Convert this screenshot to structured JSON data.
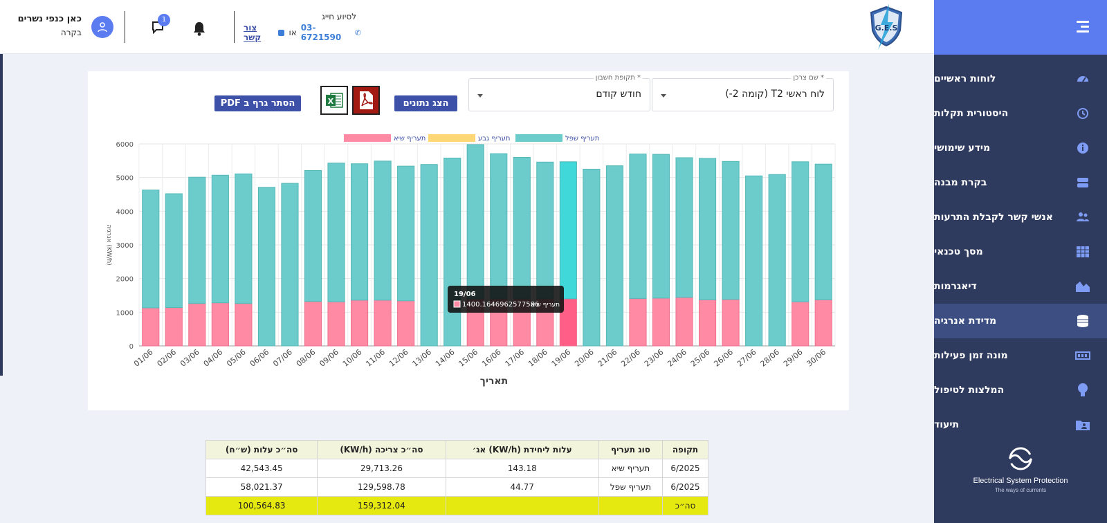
{
  "sidebar": {
    "items": [
      {
        "label": "לוחות ראשיים",
        "icon": "dashboard-icon"
      },
      {
        "label": "היסטורית תקלות",
        "icon": "history-icon"
      },
      {
        "label": "מידע שימושי",
        "icon": "info-icon"
      },
      {
        "label": "בקרת מבנה",
        "icon": "server-icon"
      },
      {
        "label": "אנשי קשר לקבלת התרעות",
        "icon": "users-icon"
      },
      {
        "label": "מסך טכנאי",
        "icon": "grid-icon"
      },
      {
        "label": "דיאגרמות",
        "icon": "area-chart-icon"
      },
      {
        "label": "מדידת אנרגיה",
        "icon": "coins-icon",
        "active": true
      },
      {
        "label": "מונה זמן פעילות",
        "icon": "counter-icon"
      },
      {
        "label": "המלצות לטיפול",
        "icon": "lightbulb-icon"
      },
      {
        "label": "תיעוד",
        "icon": "folder-user-icon"
      }
    ],
    "esp_title": "Electrical System Protection",
    "esp_subtitle": "The ways of currents"
  },
  "header": {
    "logo_text": "G.E.S",
    "support_title": "לסיוע חייג",
    "phone": "03-6721590",
    "or_text": "או",
    "contact_link": "צור קשר",
    "notifications_count": "1",
    "user_name": "כאן כנפי נשרים",
    "user_role": "בקרה"
  },
  "filters": {
    "consumer_label": "שם צרכן *",
    "consumer_value": "לוח ראשי T2 (קומה 2-)",
    "period_label": "תקופת חשבון *",
    "period_value": "חודש קודם"
  },
  "buttons": {
    "show_data": "הצג נתונים",
    "hide_pdf": "הסתר גרף ב PDF"
  },
  "colors": {
    "low": "#6ccbcb",
    "low_highlight": "#40d8d8",
    "peak": "#ff8aa3",
    "peak_highlight": "#ff5e86",
    "mid": "#ffd776"
  },
  "chart_data": {
    "type": "bar",
    "stacked": true,
    "xlabel": "תאריך",
    "ylabel": "אנרגיה (KW/h)",
    "ylim": [
      0,
      6000
    ],
    "yticks": [
      0,
      1000,
      2000,
      3000,
      4000,
      5000,
      6000
    ],
    "legend": [
      "תעריף שפל",
      "תעריף גבע",
      "תעריף שיא"
    ],
    "legend_position": "top",
    "grid": true,
    "categories": [
      "01/06",
      "02/06",
      "03/06",
      "04/06",
      "05/06",
      "06/06",
      "07/06",
      "08/06",
      "09/06",
      "10/06",
      "11/06",
      "12/06",
      "13/06",
      "14/06",
      "15/06",
      "16/06",
      "17/06",
      "18/06",
      "19/06",
      "20/06",
      "21/06",
      "22/06",
      "23/06",
      "24/06",
      "25/06",
      "26/06",
      "27/06",
      "28/06",
      "29/06",
      "30/06"
    ],
    "series": [
      {
        "name": "תעריף שיא",
        "values": [
          1130,
          1140,
          1260,
          1280,
          1260,
          0,
          0,
          1320,
          1310,
          1360,
          1360,
          1340,
          0,
          0,
          1400,
          1400,
          1400,
          1400,
          1400,
          0,
          0,
          1410,
          1420,
          1440,
          1370,
          1380,
          0,
          0,
          1310,
          1370
        ]
      },
      {
        "name": "תעריף גבע",
        "values": [
          0,
          0,
          0,
          0,
          0,
          0,
          0,
          0,
          0,
          0,
          0,
          0,
          0,
          0,
          0,
          0,
          0,
          0,
          0,
          0,
          0,
          0,
          0,
          0,
          0,
          0,
          0,
          0,
          0,
          0
        ]
      },
      {
        "name": "תעריף שפל",
        "values": [
          3500,
          3380,
          3750,
          3790,
          3850,
          4710,
          4830,
          3890,
          4120,
          4050,
          4130,
          4000,
          5390,
          5580,
          4580,
          4310,
          4200,
          4060,
          4070,
          5250,
          5350,
          4290,
          4270,
          4150,
          4200,
          4100,
          5050,
          5090,
          4160,
          4030
        ]
      }
    ],
    "highlight_index": 18,
    "tooltip": {
      "date": "19/06",
      "series": "תעריף שיא",
      "value": "1400.1646962577586"
    }
  },
  "table": {
    "headers": [
      "תקופה",
      "סוג תעריף",
      "עלות ליחידת (KW/h) אג׳",
      "סה״כ צריכה (KW/h)",
      "סה״כ עלות (ש״ח)"
    ],
    "rows": [
      [
        "6/2025",
        "תעריף שיא",
        "143.18",
        "29,713.26",
        "42,543.45"
      ],
      [
        "6/2025",
        "תעריף שפל",
        "44.77",
        "129,598.78",
        "58,021.37"
      ]
    ],
    "total": [
      "סה״כ",
      "",
      "",
      "159,312.04",
      "100,564.83"
    ]
  }
}
